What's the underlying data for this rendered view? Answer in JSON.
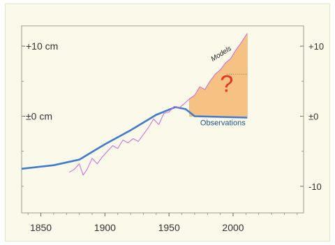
{
  "chart_data": {
    "type": "line",
    "x_ticks": [
      1850,
      1900,
      1950,
      2000
    ],
    "xlim": [
      1835,
      2055
    ],
    "ylim": [
      -13.8,
      12.9
    ],
    "left_tick_labels": [
      "+10 cm",
      "±0 cm"
    ],
    "left_tick_values": [
      10,
      0
    ],
    "right_tick_labels": [
      "+10",
      "±0",
      "-10"
    ],
    "right_tick_values": [
      10,
      0,
      -10
    ],
    "series": [
      {
        "name": "Observations",
        "color": "#3f7bd0",
        "points": [
          [
            1835,
            -7.5
          ],
          [
            1860,
            -7.0
          ],
          [
            1880,
            -6.2
          ],
          [
            1900,
            -4.0
          ],
          [
            1920,
            -2.0
          ],
          [
            1940,
            0.2
          ],
          [
            1955,
            1.3
          ],
          [
            1963,
            1.0
          ],
          [
            1970,
            0.0
          ],
          [
            1990,
            -0.1
          ],
          [
            2011,
            -0.2
          ]
        ]
      },
      {
        "name": "Models",
        "color": "#d46fd8",
        "points": [
          [
            1872,
            -8.0
          ],
          [
            1876,
            -7.6
          ],
          [
            1880,
            -6.8
          ],
          [
            1883,
            -8.4
          ],
          [
            1886,
            -7.6
          ],
          [
            1890,
            -6.0
          ],
          [
            1894,
            -6.8
          ],
          [
            1898,
            -5.8
          ],
          [
            1902,
            -5.0
          ],
          [
            1906,
            -4.2
          ],
          [
            1910,
            -4.6
          ],
          [
            1914,
            -3.4
          ],
          [
            1918,
            -3.8
          ],
          [
            1922,
            -3.2
          ],
          [
            1926,
            -3.6
          ],
          [
            1930,
            -2.6
          ],
          [
            1934,
            -1.6
          ],
          [
            1938,
            -0.4
          ],
          [
            1942,
            -1.2
          ],
          [
            1946,
            0.4
          ],
          [
            1950,
            0.6
          ],
          [
            1954,
            1.4
          ],
          [
            1958,
            1.2
          ],
          [
            1962,
            1.8
          ],
          [
            1966,
            2.5
          ],
          [
            1970,
            3.0
          ],
          [
            1974,
            4.2
          ],
          [
            1978,
            3.8
          ],
          [
            1982,
            5.0
          ],
          [
            1986,
            6.0
          ],
          [
            1990,
            6.6
          ],
          [
            1994,
            7.6
          ],
          [
            1998,
            8.2
          ],
          [
            2002,
            9.4
          ],
          [
            2006,
            10.4
          ],
          [
            2011,
            11.8
          ]
        ]
      }
    ],
    "shaded_region": {
      "color": "#f5c284",
      "upper": [
        [
          1966,
          2.5
        ],
        [
          1970,
          3.0
        ],
        [
          1974,
          4.2
        ],
        [
          1978,
          3.8
        ],
        [
          1982,
          5.0
        ],
        [
          1986,
          6.0
        ],
        [
          1990,
          6.6
        ],
        [
          1994,
          7.6
        ],
        [
          1998,
          8.2
        ],
        [
          2002,
          9.4
        ],
        [
          2006,
          10.4
        ],
        [
          2011,
          11.8
        ]
      ],
      "lower": [
        [
          1966,
          0.0
        ],
        [
          2011,
          -0.2
        ]
      ]
    },
    "annotations": [
      {
        "text": "Models",
        "x": 1995,
        "y": 7.8,
        "color": "#222222"
      },
      {
        "text": "Observations",
        "x": 1992,
        "y": -1.3,
        "color": "#1d4f8c"
      },
      {
        "text": "?",
        "x": 1995,
        "y": 3.5,
        "color": "#e23524"
      }
    ],
    "dotted_line": {
      "x_start": 1995,
      "x_end": 2011,
      "y": 6.0
    },
    "grid": false
  }
}
